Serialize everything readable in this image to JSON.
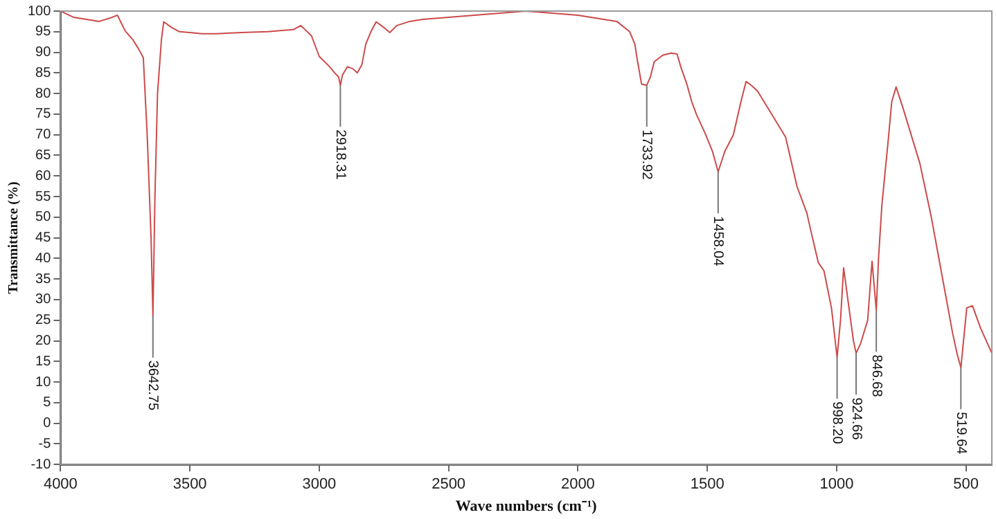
{
  "chart_data": {
    "type": "line",
    "xlabel": "Wave numbers (cm⁻¹)",
    "ylabel": "Transmittance (%)",
    "series": [
      {
        "color": "#cc4a4a",
        "x": [
          4000,
          3950,
          3900,
          3850,
          3800,
          3780,
          3750,
          3720,
          3700,
          3680,
          3665,
          3650,
          3642.75,
          3635,
          3625,
          3610,
          3601,
          3570,
          3540,
          3500,
          3454,
          3400,
          3300,
          3200,
          3100,
          3071,
          3030,
          3000,
          2960,
          2940,
          2925,
          2918.31,
          2910,
          2891,
          2870,
          2853,
          2835,
          2820,
          2800,
          2780,
          2750,
          2727,
          2700,
          2650,
          2600,
          2500,
          2400,
          2300,
          2200,
          2100,
          2000,
          1900,
          1850,
          1800,
          1780,
          1770,
          1754,
          1733.92,
          1720,
          1705,
          1672,
          1640,
          1617,
          1600,
          1579,
          1560,
          1541,
          1508,
          1480,
          1458.04,
          1432,
          1399,
          1370,
          1350,
          1330,
          1306,
          1251,
          1197,
          1153,
          1115,
          1100,
          1071,
          1049,
          1020,
          998.2,
          985,
          973,
          951,
          935,
          924.66,
          907,
          880,
          863,
          846.68,
          838,
          825,
          800,
          787,
          770,
          743,
          678,
          634,
          596,
          552,
          535,
          519.64,
          497,
          475,
          443,
          400
        ],
        "values": [
          100,
          98.5,
          98,
          97.5,
          98.5,
          99,
          95.2,
          93,
          91,
          88.7,
          70,
          45,
          26,
          55,
          80,
          93,
          97.4,
          96,
          95,
          94.8,
          94.5,
          94.5,
          94.8,
          95,
          95.5,
          96.5,
          94,
          89,
          86.5,
          85,
          84,
          82,
          84.5,
          86.5,
          86,
          85,
          87,
          92,
          95,
          97.4,
          96,
          94.8,
          96.5,
          97.5,
          98,
          98.5,
          99,
          99.5,
          100,
          99.5,
          99,
          98,
          97.5,
          95,
          92,
          88,
          82.3,
          82,
          84,
          87.7,
          89.3,
          89.8,
          89.6,
          86,
          82.3,
          78,
          74.8,
          70.3,
          66,
          61,
          66,
          70,
          78,
          82.9,
          82,
          80.6,
          75,
          69.4,
          57.4,
          51,
          46.8,
          39,
          37,
          28,
          16,
          25,
          37.7,
          27.4,
          20,
          17,
          19.4,
          25,
          39.3,
          27.4,
          40,
          53,
          69,
          78,
          81.6,
          76.4,
          63,
          50,
          37,
          22,
          17,
          13.5,
          28,
          28.5,
          23,
          17
        ]
      }
    ],
    "xlim": [
      4000,
      400
    ],
    "xticks": [
      4000,
      3500,
      3000,
      2500,
      2000,
      1500,
      1000,
      500
    ],
    "ylim": [
      -10,
      100
    ],
    "yticks": [
      -10,
      -5,
      0,
      5,
      10,
      15,
      20,
      25,
      30,
      35,
      40,
      45,
      50,
      55,
      60,
      65,
      70,
      75,
      80,
      85,
      90,
      95,
      100
    ],
    "grid": false,
    "legend": false,
    "marker": "none",
    "line_style": "solid",
    "annotations": [
      {
        "text": "3642.75",
        "x": 3642.75,
        "y": 26
      },
      {
        "text": "2918.31",
        "x": 2918.31,
        "y": 82
      },
      {
        "text": "1733.92",
        "x": 1733.92,
        "y": 82
      },
      {
        "text": "1458.04",
        "x": 1458.04,
        "y": 61
      },
      {
        "text": "998.20",
        "x": 998.2,
        "y": 16
      },
      {
        "text": "924.66",
        "x": 924.66,
        "y": 17
      },
      {
        "text": "846.68",
        "x": 846.68,
        "y": 27.4
      },
      {
        "text": "519.64",
        "x": 519.64,
        "y": 13.5
      }
    ]
  }
}
